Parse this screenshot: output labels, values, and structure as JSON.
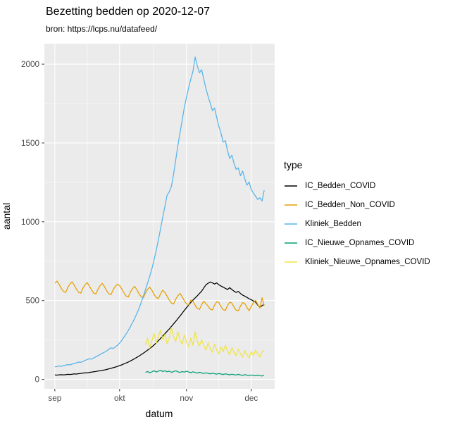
{
  "chart_data": {
    "type": "line",
    "title": "Bezetting bedden op 2020-12-07",
    "subtitle": "bron: https://lcps.nu/datafeed/",
    "xlabel": "datum",
    "ylabel": "aantal",
    "legend_title": "type",
    "legend_position": "right",
    "grid": true,
    "x_tick_labels": [
      "sep",
      "okt",
      "nov",
      "dec"
    ],
    "x_tick_days": [
      0,
      30,
      61,
      91
    ],
    "x_minor_days": [
      15,
      45.5,
      76
    ],
    "y_ticks": [
      0,
      500,
      1000,
      1500,
      2000
    ],
    "y_minor": [
      250,
      750,
      1250,
      1750
    ],
    "x_range_days": [
      -4.85,
      101.85
    ],
    "y_range": [
      -60,
      2130
    ],
    "colors": {
      "panel_background": "#EBEBEB",
      "grid_major": "#FFFFFF",
      "grid_minor": "#FFFFFF",
      "axis_text": "#4D4D4D",
      "tick_mark": "#333333"
    },
    "series": [
      {
        "name": "IC_Bedden_COVID",
        "color": "#000000",
        "start_day": 0,
        "values": [
          28,
          27,
          29,
          30,
          28,
          30,
          32,
          31,
          33,
          35,
          34,
          36,
          38,
          40,
          42,
          41,
          44,
          46,
          48,
          50,
          53,
          55,
          58,
          60,
          63,
          67,
          70,
          74,
          78,
          82,
          88,
          92,
          98,
          104,
          110,
          117,
          124,
          132,
          140,
          148,
          157,
          166,
          176,
          186,
          196,
          207,
          219,
          232,
          246,
          260,
          275,
          290,
          305,
          320,
          336,
          352,
          368,
          385,
          402,
          420,
          438,
          455,
          472,
          488,
          503,
          517,
          530,
          545,
          560,
          580,
          600,
          610,
          618,
          612,
          605,
          612,
          600,
          592,
          585,
          578,
          570,
          582,
          570,
          560,
          552,
          558,
          545,
          535,
          528,
          520,
          512,
          505,
          498,
          490,
          472,
          458,
          468,
          476
        ]
      },
      {
        "name": "IC_Bedden_Non_COVID",
        "color": "#E69F00",
        "start_day": 0,
        "values": [
          610,
          624,
          603,
          578,
          558,
          552,
          583,
          605,
          619,
          598,
          573,
          553,
          547,
          578,
          600,
          614,
          593,
          568,
          548,
          542,
          573,
          595,
          609,
          588,
          563,
          543,
          537,
          568,
          590,
          604,
          595,
          574,
          549,
          529,
          523,
          554,
          576,
          590,
          569,
          544,
          524,
          518,
          549,
          571,
          585,
          564,
          539,
          519,
          513,
          544,
          566,
          550,
          529,
          504,
          484,
          478,
          509,
          531,
          545,
          524,
          499,
          479,
          473,
          503,
          495,
          470,
          450,
          444,
          474,
          496,
          480,
          465,
          445,
          441,
          471,
          493,
          487,
          462,
          442,
          438,
          468,
          490,
          484,
          459,
          439,
          435,
          465,
          487,
          481,
          456,
          436,
          462,
          488,
          502,
          476,
          452,
          518,
          468
        ]
      },
      {
        "name": "Kliniek_Bedden",
        "color": "#56B4E9",
        "start_day": 0,
        "values": [
          80,
          82,
          85,
          83,
          88,
          90,
          94,
          92,
          97,
          101,
          105,
          110,
          108,
          114,
          120,
          126,
          131,
          128,
          136,
          143,
          151,
          158,
          166,
          173,
          181,
          191,
          200,
          196,
          206,
          216,
          230,
          248,
          268,
          288,
          310,
          334,
          360,
          388,
          418,
          450,
          488,
          528,
          570,
          612,
          656,
          704,
          760,
          822,
          888,
          958,
          1030,
          1100,
          1168,
          1190,
          1225,
          1300,
          1392,
          1482,
          1565,
          1645,
          1725,
          1790,
          1852,
          1905,
          1955,
          2045,
          1990,
          1945,
          1965,
          1905,
          1845,
          1795,
          1752,
          1705,
          1722,
          1662,
          1605,
          1562,
          1505,
          1515,
          1452,
          1402,
          1422,
          1372,
          1332,
          1342,
          1292,
          1322,
          1272,
          1232,
          1252,
          1205,
          1182,
          1162,
          1142,
          1152,
          1132,
          1200
        ]
      },
      {
        "name": "IC_Nieuwe_Opnames_COVID",
        "color": "#009E73",
        "start_day": 42,
        "values": [
          45,
          50,
          42,
          48,
          55,
          47,
          52,
          58,
          50,
          55,
          48,
          52,
          45,
          50,
          55,
          48,
          44,
          50,
          46,
          52,
          47,
          43,
          48,
          44,
          40,
          45,
          41,
          38,
          42,
          38,
          35,
          40,
          36,
          33,
          38,
          34,
          31,
          35,
          32,
          29,
          33,
          30,
          28,
          32,
          28,
          26,
          30,
          27,
          25,
          28,
          25,
          23,
          27,
          24,
          22,
          26
        ]
      },
      {
        "name": "Kliniek_Nieuwe_Opnames_COVID",
        "color": "#F0E442",
        "start_day": 42,
        "values": [
          220,
          262,
          198,
          246,
          292,
          230,
          272,
          312,
          252,
          286,
          226,
          266,
          330,
          272,
          240,
          302,
          252,
          222,
          282,
          236,
          206,
          262,
          216,
          302,
          246,
          212,
          252,
          215,
          186,
          232,
          196,
          172,
          222,
          186,
          162,
          206,
          176,
          216,
          182,
          156,
          202,
          172,
          150,
          192,
          162,
          142,
          182,
          156,
          136,
          176,
          152,
          186,
          162,
          142,
          176,
          182
        ]
      }
    ]
  }
}
